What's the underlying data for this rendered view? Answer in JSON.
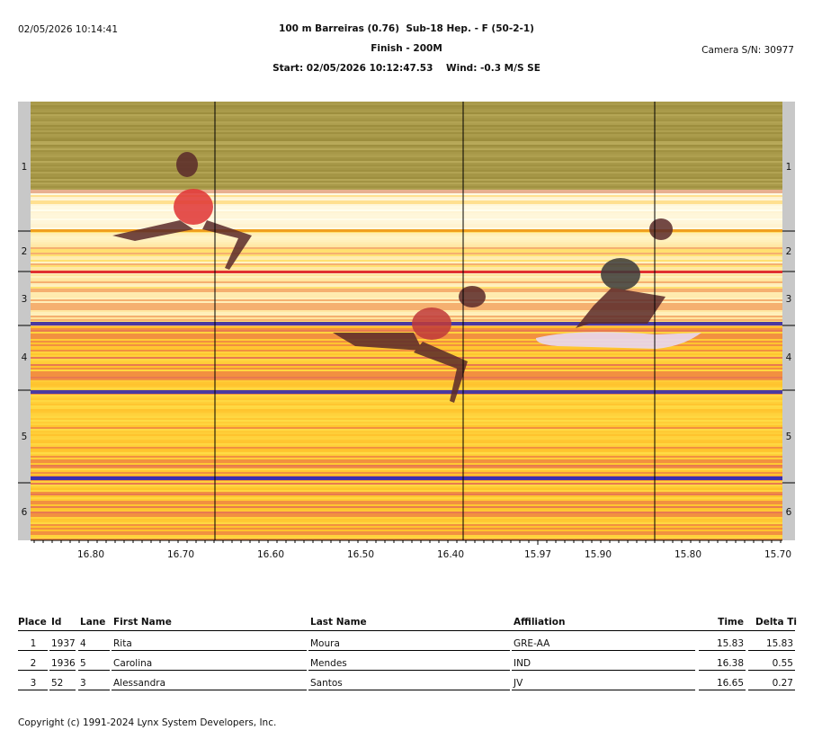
{
  "header": {
    "timestamp": "02/05/2026 10:14:41",
    "title": "100 m Barreiras (0.76)  Sub-18 Hep. - F (50-2-1)",
    "subtitle": "Finish - 200M",
    "start_info": "Start: 02/05/2026 10:12:47.53    Wind: -0.3 M/S SE",
    "camera": "Camera S/N: 30977"
  },
  "photo": {
    "lanes": [
      "1",
      "2",
      "3",
      "4",
      "5",
      "6"
    ],
    "time_axis": [
      "16.80",
      "16.70",
      "16.60",
      "16.50",
      "16.40",
      "15.97",
      "15.90",
      "15.80",
      "15.70"
    ]
  },
  "table": {
    "columns": [
      "Place",
      "Id",
      "Lane",
      "First Name",
      "Last Name",
      "Affiliation",
      "Time",
      "Delta Ti"
    ],
    "rows": [
      [
        "1",
        "1937",
        "4",
        "Rita",
        "Moura",
        "GRE-AA",
        "15.83",
        "15.83"
      ],
      [
        "2",
        "1936",
        "5",
        "Carolina",
        "Mendes",
        "IND",
        "16.38",
        "0.55"
      ],
      [
        "3",
        "52",
        "3",
        "Alessandra",
        "Santos",
        "JV",
        "16.65",
        "0.27"
      ]
    ]
  },
  "footer": "Copyright (c) 1991-2024 Lynx System Developers, Inc."
}
